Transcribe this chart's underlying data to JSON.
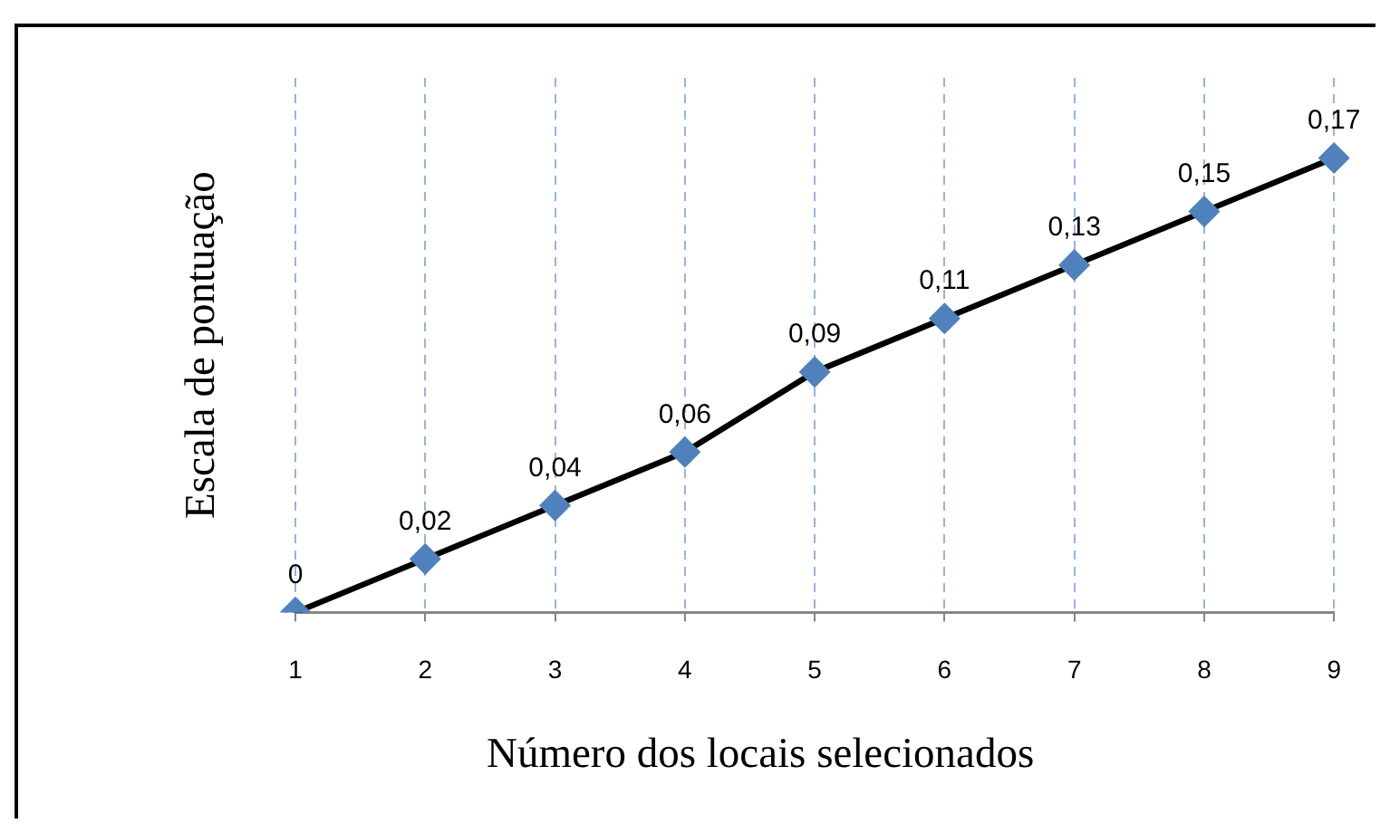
{
  "chart_data": {
    "type": "line",
    "xlabel": "Número dos locais selecionados",
    "ylabel": "Escala de pontuação",
    "categories": [
      "1",
      "2",
      "3",
      "4",
      "5",
      "6",
      "7",
      "8",
      "9"
    ],
    "values": [
      0,
      0.02,
      0.04,
      0.06,
      0.09,
      0.11,
      0.13,
      0.15,
      0.17
    ],
    "value_labels": [
      "0",
      "0,02",
      "0,04",
      "0,06",
      "0,09",
      "0,11",
      "0,13",
      "0,15",
      "0,17"
    ],
    "color": "#000000",
    "colors": [
      "#4f81bd",
      "#4f81bd",
      "#4f81bd",
      "#4f81bd",
      "#4f81bd",
      "#4f81bd",
      "#4f81bd",
      "#4f81bd",
      "#4f81bd"
    ],
    "ylim": [
      0,
      0.2
    ],
    "tick_labels": "x",
    "grid": "x",
    "marker": "diamond",
    "line_style": "solid"
  }
}
